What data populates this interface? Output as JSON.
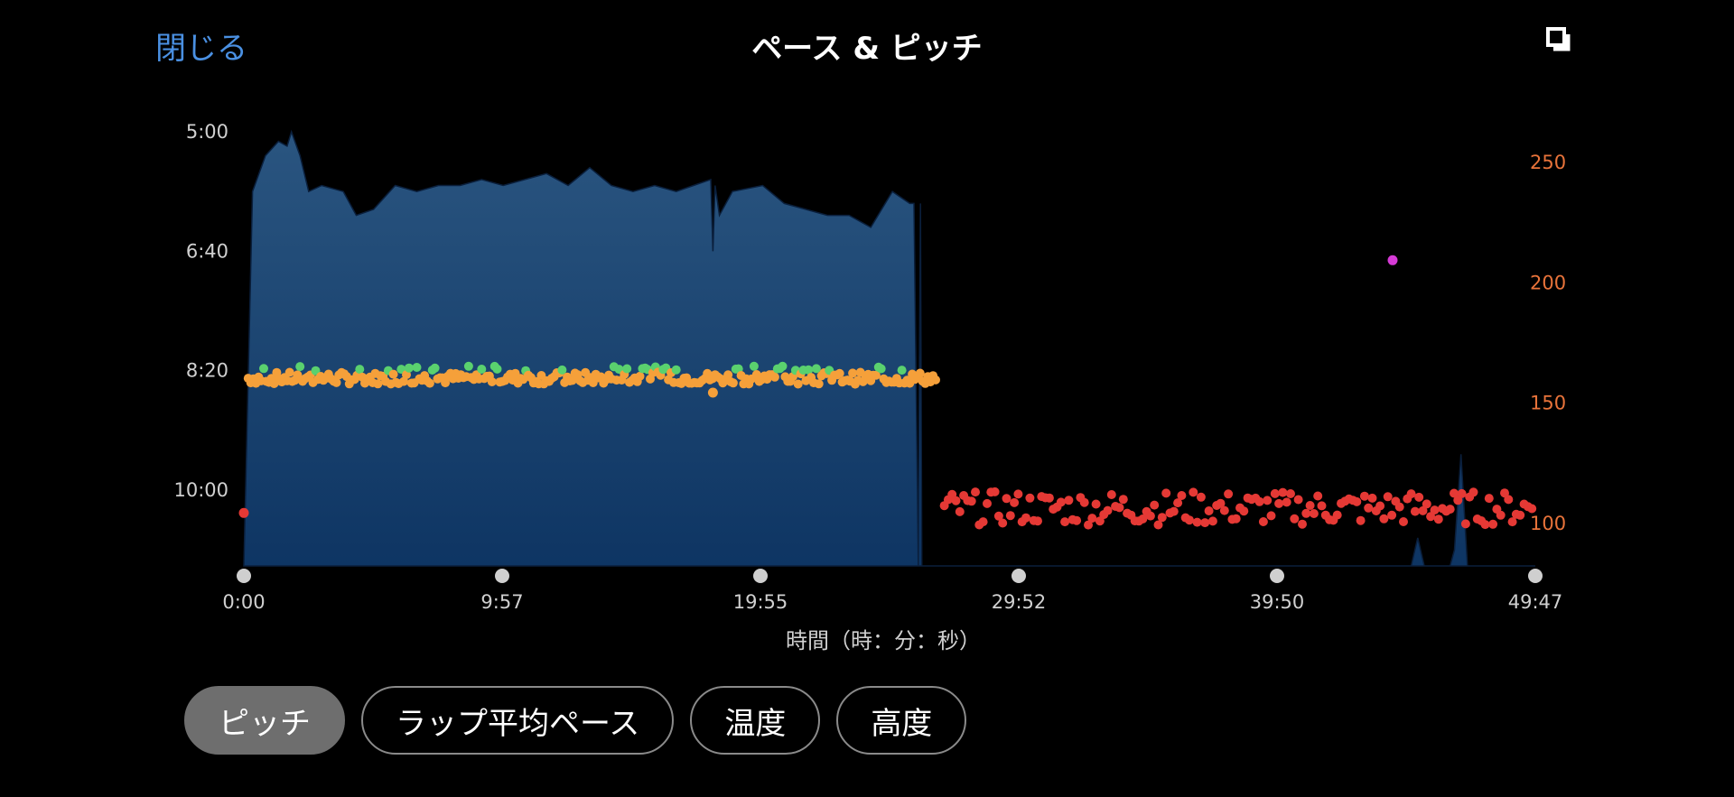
{
  "header": {
    "close_label": "閉じる",
    "title": "ペース & ピッチ",
    "expand_icon": "expand-icon"
  },
  "tabs": [
    {
      "label": "ピッチ",
      "active": true
    },
    {
      "label": "ラップ平均ペース",
      "active": false
    },
    {
      "label": "温度",
      "active": false
    },
    {
      "label": "高度",
      "active": false
    }
  ],
  "chart_data": {
    "type": "area",
    "xlabel": "時間（時：分：秒）",
    "x_ticks": [
      "0:00",
      "9:57",
      "19:55",
      "29:52",
      "39:50",
      "49:47"
    ],
    "x_range_seconds": [
      0,
      2987
    ],
    "left_axis": {
      "ticks": [
        "5:00",
        "6:40",
        "8:20",
        "10:00"
      ],
      "unit": "min/km pace"
    },
    "right_axis": {
      "ticks": [
        250,
        200,
        150,
        100
      ],
      "unit": "spm",
      "range": [
        80,
        262
      ]
    },
    "colors": {
      "pace_fill_top": "#2a5580",
      "pace_fill_bottom": "#0e3563",
      "cadence_orange": "#f5a03a",
      "cadence_green": "#5ad16e",
      "cadence_red": "#e53935",
      "cadence_purple": "#d63ad6",
      "left_axis_text": "#d0d0d0",
      "right_axis_text": "#e8733a"
    },
    "pace_series": {
      "name": "pace",
      "description_points_sec_vs_paceSec": [
        [
          0,
          725
        ],
        [
          8,
          540
        ],
        [
          20,
          350
        ],
        [
          50,
          320
        ],
        [
          80,
          308
        ],
        [
          100,
          312
        ],
        [
          110,
          300
        ],
        [
          130,
          320
        ],
        [
          150,
          350
        ],
        [
          180,
          345
        ],
        [
          230,
          350
        ],
        [
          260,
          370
        ],
        [
          300,
          365
        ],
        [
          350,
          345
        ],
        [
          400,
          350
        ],
        [
          450,
          345
        ],
        [
          500,
          345
        ],
        [
          550,
          340
        ],
        [
          600,
          345
        ],
        [
          650,
          340
        ],
        [
          700,
          335
        ],
        [
          750,
          345
        ],
        [
          800,
          330
        ],
        [
          850,
          345
        ],
        [
          900,
          350
        ],
        [
          950,
          345
        ],
        [
          1000,
          350
        ],
        [
          1040,
          345
        ],
        [
          1080,
          340
        ],
        [
          1085,
          400
        ],
        [
          1090,
          345
        ],
        [
          1100,
          370
        ],
        [
          1130,
          350
        ],
        [
          1200,
          345
        ],
        [
          1250,
          360
        ],
        [
          1300,
          365
        ],
        [
          1350,
          370
        ],
        [
          1400,
          370
        ],
        [
          1450,
          380
        ],
        [
          1500,
          350
        ],
        [
          1540,
          360
        ],
        [
          1550,
          360
        ],
        [
          1560,
          740
        ],
        [
          1565,
          360
        ],
        [
          1568,
          740
        ],
        [
          1575,
          740
        ],
        [
          1800,
          740
        ],
        [
          1815,
          720
        ],
        [
          1825,
          740
        ],
        [
          1850,
          740
        ],
        [
          1858,
          690
        ],
        [
          1866,
          740
        ],
        [
          2100,
          740
        ],
        [
          2115,
          725
        ],
        [
          2125,
          740
        ],
        [
          2700,
          740
        ],
        [
          2715,
          640
        ],
        [
          2730,
          740
        ],
        [
          2790,
          740
        ],
        [
          2800,
          650
        ],
        [
          2815,
          570
        ],
        [
          2830,
          740
        ],
        [
          2987,
          740
        ]
      ]
    },
    "cadence_series": {
      "name": "cadence",
      "segments": [
        {
          "x_range_sec": [
            10,
            1600
          ],
          "value_around": 160,
          "color": "orange",
          "highlights": "green"
        },
        {
          "x_range_sec": [
            1620,
            2987
          ],
          "value_around": 106,
          "color": "red"
        }
      ],
      "outliers": [
        {
          "x_sec": 1085,
          "value": 154,
          "color": "orange"
        },
        {
          "x_sec": 2657,
          "value": 209,
          "color": "purple"
        },
        {
          "x_sec": 0,
          "value": 104,
          "color": "red"
        }
      ]
    }
  }
}
